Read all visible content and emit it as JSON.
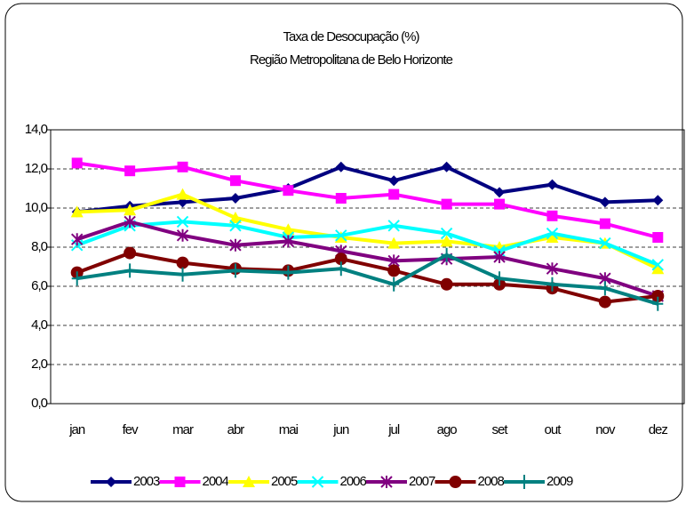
{
  "chart_data": {
    "type": "line",
    "title": "Taxa de Desocupação (%)",
    "subtitle": "Região Metropolitana de Belo Horizonte",
    "categories": [
      "jan",
      "fev",
      "mar",
      "abr",
      "mai",
      "jun",
      "jul",
      "ago",
      "set",
      "out",
      "nov",
      "dez"
    ],
    "series": [
      {
        "name": "2003",
        "color": "#000080",
        "marker": "diamond",
        "values": [
          9.8,
          10.1,
          10.3,
          10.5,
          11.0,
          12.1,
          11.4,
          12.1,
          10.8,
          11.2,
          10.3,
          10.4
        ]
      },
      {
        "name": "2004",
        "color": "#ff00ff",
        "marker": "square",
        "values": [
          12.3,
          11.9,
          12.1,
          11.4,
          10.9,
          10.5,
          10.7,
          10.2,
          10.2,
          9.6,
          9.2,
          8.5
        ]
      },
      {
        "name": "2005",
        "color": "#ffff00",
        "marker": "triangle",
        "values": [
          9.8,
          9.9,
          10.7,
          9.5,
          8.9,
          8.5,
          8.2,
          8.3,
          8.0,
          8.5,
          8.2,
          6.9
        ]
      },
      {
        "name": "2006",
        "color": "#00ffff",
        "marker": "x",
        "values": [
          8.1,
          9.1,
          9.3,
          9.1,
          8.5,
          8.6,
          9.1,
          8.7,
          7.8,
          8.7,
          8.2,
          7.1
        ]
      },
      {
        "name": "2007",
        "color": "#800080",
        "marker": "asterisk",
        "values": [
          8.4,
          9.3,
          8.6,
          8.1,
          8.3,
          7.8,
          7.3,
          7.4,
          7.5,
          6.9,
          6.4,
          5.5
        ]
      },
      {
        "name": "2008",
        "color": "#800000",
        "marker": "circle",
        "values": [
          6.7,
          7.7,
          7.2,
          6.9,
          6.8,
          7.4,
          6.8,
          6.1,
          6.1,
          5.9,
          5.2,
          5.5
        ]
      },
      {
        "name": "2009",
        "color": "#008080",
        "marker": "plus",
        "values": [
          6.4,
          6.8,
          6.6,
          6.8,
          6.7,
          6.9,
          6.1,
          7.6,
          6.4,
          6.1,
          5.9,
          5.1
        ]
      }
    ],
    "ylim": [
      0,
      14
    ],
    "yticks": [
      {
        "value": 0,
        "label": "0,0"
      },
      {
        "value": 2,
        "label": "2,0"
      },
      {
        "value": 4,
        "label": "4,0"
      },
      {
        "value": 6,
        "label": "6,0"
      },
      {
        "value": 8,
        "label": "8,0"
      },
      {
        "value": 10,
        "label": "10,0"
      },
      {
        "value": 12,
        "label": "12,0"
      },
      {
        "value": 14,
        "label": "14,0"
      }
    ],
    "grid": true,
    "legend": "bottom"
  }
}
